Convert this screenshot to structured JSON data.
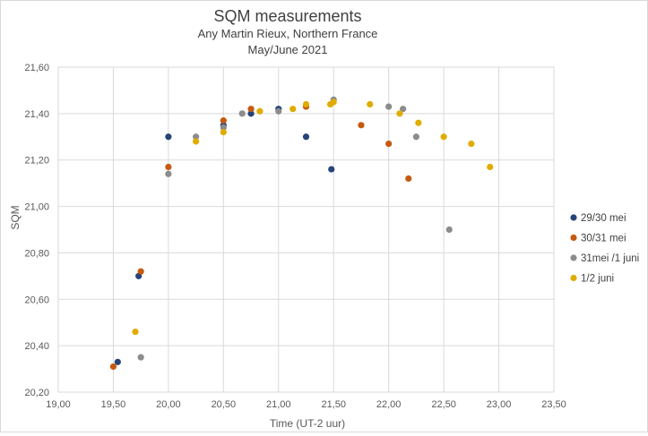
{
  "chart_data": {
    "type": "scatter",
    "title": "SQM measurements",
    "subtitle_lines": [
      "Any Martin Rieux, Northern France",
      "May/June 2021"
    ],
    "xlabel": "Time (UT-2 uur)",
    "ylabel": "SQM",
    "xlim": [
      19.0,
      23.5
    ],
    "ylim": [
      20.2,
      21.6
    ],
    "xticks": [
      "19,00",
      "19,50",
      "20,00",
      "20,50",
      "21,00",
      "21,50",
      "22,00",
      "22,50",
      "23,00",
      "23,50"
    ],
    "yticks": [
      "20,20",
      "20,40",
      "20,60",
      "20,80",
      "21,00",
      "21,20",
      "21,40",
      "21,60"
    ],
    "grid": true,
    "legend_position": "right",
    "series": [
      {
        "name": "29/30 mei",
        "color": "#264478",
        "points": [
          [
            19.54,
            20.33
          ],
          [
            19.73,
            20.7
          ],
          [
            20.0,
            21.3
          ],
          [
            20.5,
            21.35
          ],
          [
            20.75,
            21.4
          ],
          [
            21.0,
            21.42
          ],
          [
            21.25,
            21.3
          ],
          [
            21.48,
            21.16
          ]
        ]
      },
      {
        "name": "30/31 mei",
        "color": "#C55A11",
        "points": [
          [
            19.5,
            20.31
          ],
          [
            19.75,
            20.72
          ],
          [
            20.0,
            21.17
          ],
          [
            20.5,
            21.37
          ],
          [
            20.75,
            21.42
          ],
          [
            21.25,
            21.43
          ],
          [
            21.75,
            21.35
          ],
          [
            22.0,
            21.27
          ],
          [
            22.18,
            21.12
          ]
        ]
      },
      {
        "name": "31mei /1 juni",
        "color": "#8C8C8C",
        "points": [
          [
            19.75,
            20.35
          ],
          [
            20.0,
            21.14
          ],
          [
            20.25,
            21.3
          ],
          [
            20.5,
            21.34
          ],
          [
            20.67,
            21.4
          ],
          [
            21.0,
            21.41
          ],
          [
            21.5,
            21.46
          ],
          [
            22.0,
            21.43
          ],
          [
            22.13,
            21.42
          ],
          [
            22.25,
            21.3
          ],
          [
            22.55,
            20.9
          ]
        ]
      },
      {
        "name": "1/2 juni",
        "color": "#E0AC00",
        "points": [
          [
            19.7,
            20.46
          ],
          [
            20.25,
            21.28
          ],
          [
            20.5,
            21.32
          ],
          [
            20.83,
            21.41
          ],
          [
            21.13,
            21.42
          ],
          [
            21.25,
            21.44
          ],
          [
            21.47,
            21.44
          ],
          [
            21.5,
            21.45
          ],
          [
            21.83,
            21.44
          ],
          [
            22.1,
            21.4
          ],
          [
            22.27,
            21.36
          ],
          [
            22.5,
            21.3
          ],
          [
            22.75,
            21.27
          ],
          [
            22.92,
            21.17
          ]
        ]
      }
    ]
  }
}
